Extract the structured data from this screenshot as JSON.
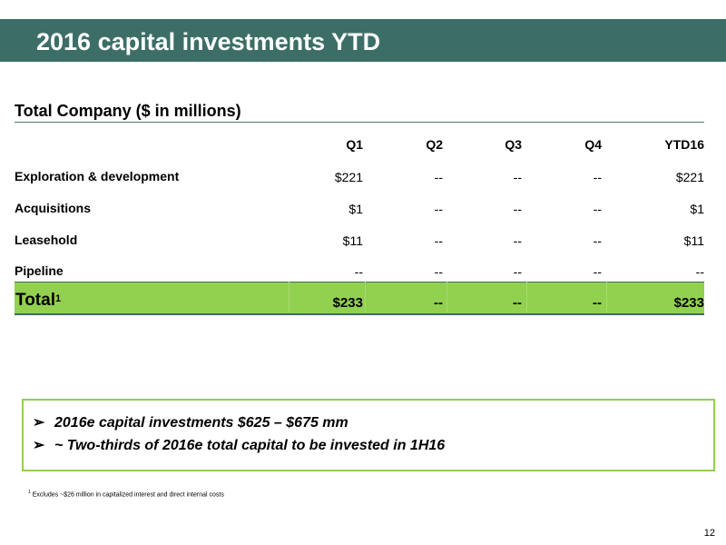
{
  "header": {
    "title": "2016 capital investments YTD"
  },
  "table": {
    "title": "Total Company ($ in millions)",
    "columns": [
      "Q1",
      "Q2",
      "Q3",
      "Q4",
      "YTD16"
    ],
    "rows": [
      {
        "label": "Exploration & development",
        "values": [
          "$221",
          "--",
          "--",
          "--",
          "$221"
        ]
      },
      {
        "label": "Acquisitions",
        "values": [
          "$1",
          "--",
          "--",
          "--",
          "$1"
        ]
      },
      {
        "label": "Leasehold",
        "values": [
          "$11",
          "--",
          "--",
          "--",
          "$11"
        ]
      },
      {
        "label": "Pipeline",
        "values": [
          "--",
          "--",
          "--",
          "--",
          "--"
        ]
      }
    ],
    "total": {
      "label": "Total",
      "footnote_mark": "1",
      "values": [
        "$233",
        "--",
        "--",
        "--",
        "$233"
      ]
    }
  },
  "callout": {
    "bullet_icon": "arrow-bullet-icon",
    "bullet_glyph": "➢",
    "items": [
      "2016e capital investments $625 – $675 mm",
      "~ Two-thirds of 2016e total capital to be invested in 1H16"
    ]
  },
  "footnote": {
    "mark": "1",
    "text": "Excludes ~$26 million in capitalized interest and direct internal costs"
  },
  "page_number": "12",
  "colors": {
    "title_bar": "#3c6e67",
    "total_row": "#92d050",
    "callout_border": "#92d050"
  }
}
